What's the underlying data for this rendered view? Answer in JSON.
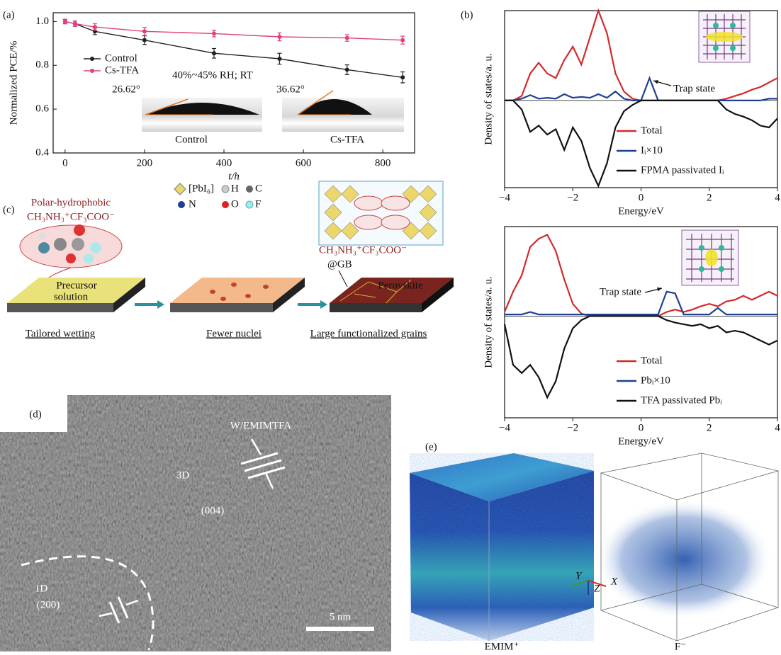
{
  "panel_labels": [
    "(a)",
    "(b)",
    "(c)",
    "(d)",
    "(e)"
  ],
  "chart_data": [
    {
      "type": "line",
      "x_label": "t/h",
      "y_label": "Normalized PCE/%",
      "xlim": [
        -30,
        880
      ],
      "ylim": [
        0.4,
        1.04
      ],
      "xticks": [
        0,
        200,
        400,
        600,
        800
      ],
      "yticks": [
        0.4,
        0.6,
        0.8,
        {
          "value": 1,
          "label": "1.0"
        }
      ],
      "legend": "upper left",
      "marker": "circle",
      "annotations": [
        "40%~45% RH; RT",
        "26.62°",
        "36.62°",
        "Control",
        "Cs-TFA"
      ],
      "series": [
        {
          "name": "Control",
          "color": "#222222",
          "x": [
            0,
            25,
            75,
            200,
            375,
            540,
            710,
            850
          ],
          "values": [
            1.0,
            0.99,
            0.955,
            0.915,
            0.855,
            0.83,
            0.78,
            0.745
          ],
          "errors": [
            0.01,
            0.012,
            0.015,
            0.02,
            0.022,
            0.025,
            0.022,
            0.025
          ]
        },
        {
          "name": "Cs-TFA",
          "color": "#e0407f",
          "x": [
            0,
            25,
            75,
            200,
            375,
            540,
            710,
            850
          ],
          "values": [
            1.0,
            0.99,
            0.975,
            0.955,
            0.945,
            0.93,
            0.925,
            0.915
          ],
          "errors": [
            0.01,
            0.012,
            0.015,
            0.018,
            0.015,
            0.018,
            0.015,
            0.018
          ]
        }
      ]
    },
    {
      "type": "line",
      "x_label": "Energy/eV",
      "y_label": "Density of states/a. u.",
      "xlim": [
        -4,
        4
      ],
      "ylim": [
        -0.97,
        1.0
      ],
      "xticks": [
        {
          "value": -4,
          "label": "−4"
        },
        {
          "value": -2,
          "label": "−2"
        },
        0,
        2,
        4
      ],
      "legend": "lower right",
      "annotations": [
        "Trap state"
      ],
      "x": [
        -4,
        -3.75,
        -3.5,
        -3.25,
        -3,
        -2.75,
        -2.5,
        -2.25,
        -2,
        -1.75,
        -1.5,
        -1.25,
        -1,
        -0.75,
        -0.5,
        -0.25,
        0,
        0.25,
        0.5,
        0.75,
        1,
        1.25,
        1.5,
        1.75,
        2,
        2.25,
        2.5,
        2.75,
        3,
        3.25,
        3.5,
        3.75,
        4
      ],
      "series": [
        {
          "name": "Total",
          "color": "#d42a2a",
          "values": [
            0,
            0,
            0.05,
            0.3,
            0.42,
            0.3,
            0.25,
            0.45,
            0.6,
            0.4,
            0.7,
            1.0,
            0.75,
            0.3,
            0.1,
            0.02,
            0,
            0,
            0,
            0,
            0,
            0,
            0,
            0,
            0,
            0,
            0.02,
            0.05,
            0.08,
            0.12,
            0.15,
            0.2,
            0.25
          ]
        },
        {
          "name": "Iᵢ×10",
          "color": "#1f3f94",
          "values": [
            0,
            0,
            0.02,
            0.06,
            0.02,
            0.03,
            0.02,
            0.07,
            0.03,
            0.04,
            0.03,
            0.07,
            0.03,
            0.1,
            0.02,
            0,
            0,
            0.25,
            0,
            0,
            0,
            0,
            0,
            0,
            0,
            0,
            0,
            0,
            0,
            0,
            0,
            0.02,
            0.02
          ]
        },
        {
          "name": "FPMA passivated Iᵢ",
          "color": "#111111",
          "values": [
            0,
            0,
            -0.1,
            -0.35,
            -0.28,
            -0.38,
            -0.32,
            -0.55,
            -0.3,
            -0.45,
            -0.75,
            -0.95,
            -0.7,
            -0.3,
            -0.12,
            -0.05,
            0,
            0,
            0,
            0,
            0,
            0,
            0,
            0,
            0,
            0,
            -0.1,
            -0.15,
            -0.18,
            -0.22,
            -0.28,
            -0.3,
            -0.2
          ]
        }
      ]
    },
    {
      "type": "line",
      "x_label": "Energy/eV",
      "y_label": "Density of states/a. u.",
      "xlim": [
        -4,
        4
      ],
      "ylim": [
        -1.25,
        1.1
      ],
      "xticks": [
        {
          "value": -4,
          "label": "−4"
        },
        {
          "value": -2,
          "label": "−2"
        },
        0,
        2,
        4
      ],
      "legend": "lower right",
      "annotations": [
        "Trap state"
      ],
      "x": [
        -4,
        -3.75,
        -3.5,
        -3.25,
        -3,
        -2.75,
        -2.5,
        -2.25,
        -2,
        -1.75,
        -1.5,
        -1.25,
        -1,
        -0.75,
        -0.5,
        -0.25,
        0,
        0.25,
        0.5,
        0.75,
        1,
        1.25,
        1.5,
        1.75,
        2,
        2.25,
        2.5,
        2.75,
        3,
        3.25,
        3.5,
        3.75,
        4
      ],
      "series": [
        {
          "name": "Total",
          "color": "#d42a2a",
          "values": [
            0.05,
            0.3,
            0.5,
            0.85,
            0.95,
            1.0,
            0.8,
            0.45,
            0.15,
            0.03,
            0,
            0,
            0,
            0,
            0,
            0,
            0,
            0,
            0,
            0.05,
            0.08,
            0.05,
            0.08,
            0.12,
            0.15,
            0.12,
            0.18,
            0.2,
            0.25,
            0.2,
            0.25,
            0.3,
            0.25
          ]
        },
        {
          "name": "Pbᵢ×10",
          "color": "#1f3f94",
          "values": [
            0.02,
            0.02,
            0.02,
            0.05,
            0.02,
            0.02,
            0.02,
            0.02,
            0.02,
            0.02,
            0.02,
            0.02,
            0.02,
            0.02,
            0.02,
            0.02,
            0.02,
            0.02,
            0.02,
            0.3,
            0.28,
            0.02,
            0.02,
            0.02,
            0.02,
            0.1,
            0.02,
            0.02,
            0.02,
            0.02,
            0.02,
            0.02,
            0.02
          ]
        },
        {
          "name": "TFA passivated Pbᵢ",
          "color": "#111111",
          "values": [
            -0.1,
            -0.6,
            -0.7,
            -0.6,
            -0.75,
            -1.0,
            -0.8,
            -0.4,
            -0.15,
            -0.05,
            0,
            0,
            0,
            0,
            0,
            0,
            0,
            0,
            0,
            -0.05,
            -0.08,
            -0.1,
            -0.12,
            -0.1,
            -0.15,
            -0.12,
            -0.2,
            -0.18,
            -0.2,
            -0.25,
            -0.3,
            -0.35,
            -0.3
          ]
        }
      ]
    }
  ],
  "diagram": {
    "molecule_title": "Polar-hydrophobic",
    "molecule_formula": "CH₃NH₃⁺CF₃COO⁻",
    "legend": [
      "[PbI₆]",
      "H",
      "C",
      "N",
      "O",
      "F"
    ],
    "precursor": [
      "Precursor",
      "solution"
    ],
    "perovskite": "Perovskite",
    "gb_formula": "CH₃NH₃⁺CF₃COO⁻",
    "gb": "@GB",
    "steps": [
      "Tailored wetting",
      "Fewer nuclei",
      "Large functionalized grains"
    ]
  },
  "tem": {
    "labels": [
      "W/EMIMTFA",
      "3D",
      "(004)",
      "1D",
      "(200)"
    ],
    "scale_bar": "5 nm"
  },
  "md": {
    "labels": [
      "EMIM⁺",
      "F⁻"
    ],
    "axes": [
      "Y",
      "Z",
      "X"
    ]
  }
}
